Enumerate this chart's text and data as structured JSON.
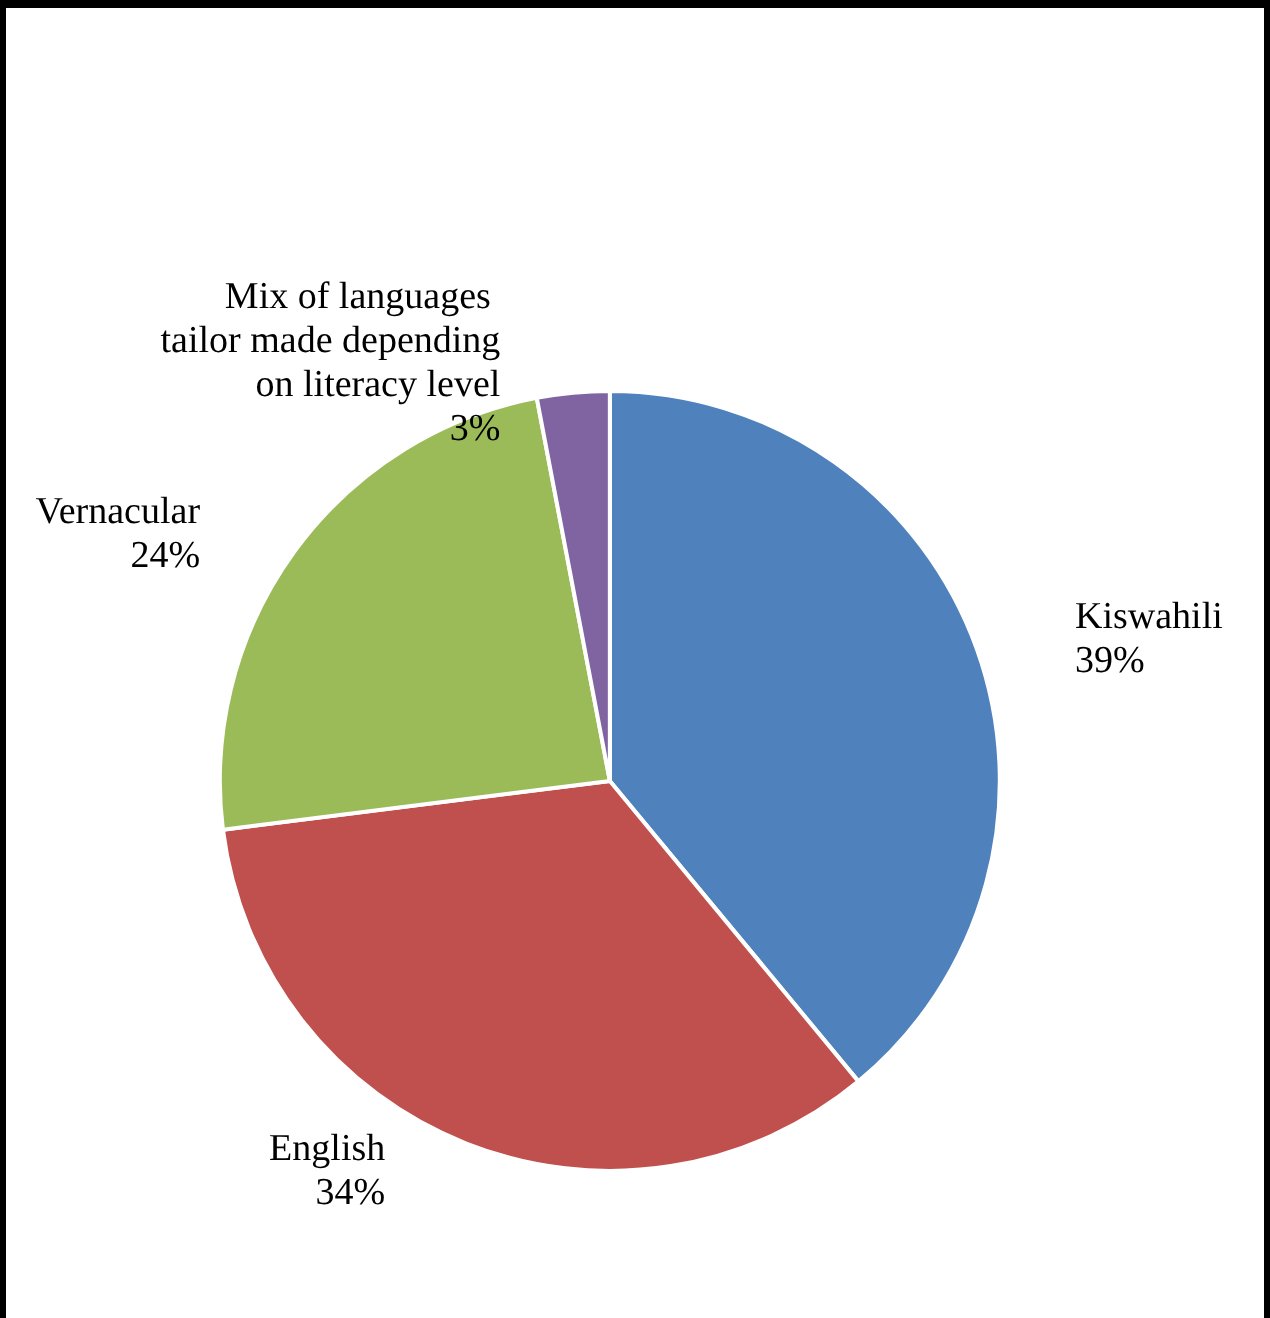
{
  "chart_data": {
    "type": "pie",
    "categories": [
      "Kiswahili",
      "English",
      "Vernacular",
      "Mix of languages tailor made depending on literacy level"
    ],
    "values": [
      39,
      34,
      24,
      3
    ],
    "colors": [
      "#4f81bd",
      "#c0504d",
      "#9bbb59",
      "#8064a2"
    ],
    "value_labels": [
      "39%",
      "34%",
      "24%",
      "3%"
    ]
  }
}
